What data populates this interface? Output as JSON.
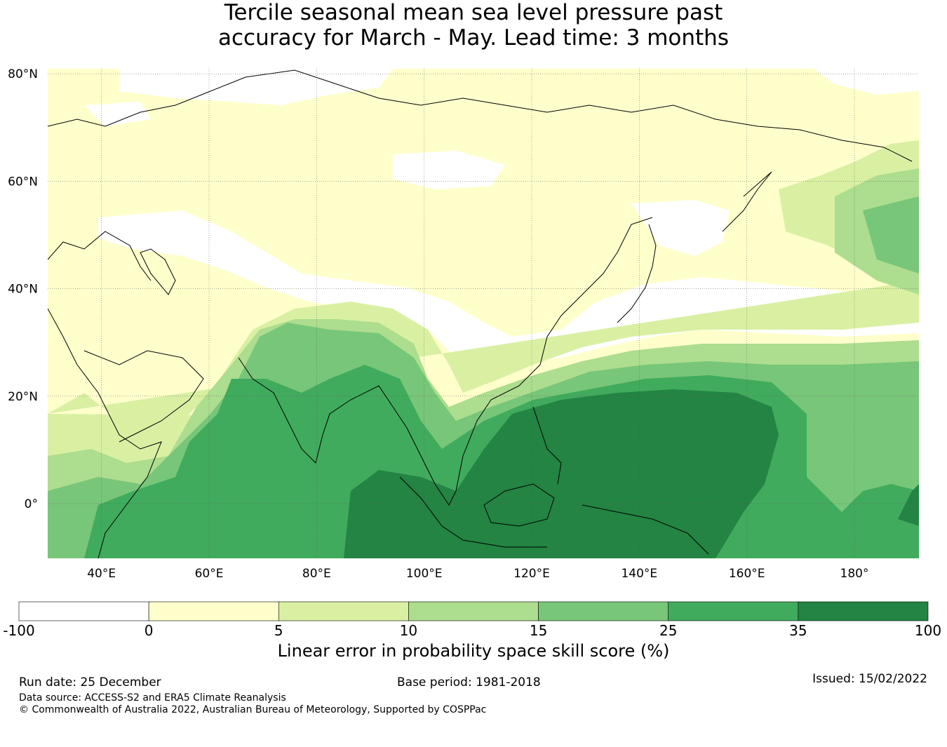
{
  "title": {
    "line1": "Tercile seasonal mean sea level pressure past",
    "line2": "accuracy for March - May. Lead time: 3 months"
  },
  "map": {
    "lat_ticks": [
      "80°N",
      "60°N",
      "40°N",
      "20°N",
      "0°"
    ],
    "lat_values": [
      80,
      60,
      40,
      20,
      0
    ],
    "lon_ticks": [
      "40°E",
      "60°E",
      "80°E",
      "100°E",
      "120°E",
      "140°E",
      "160°E",
      "180°"
    ],
    "lon_values": [
      40,
      60,
      80,
      100,
      120,
      140,
      160,
      180
    ],
    "lon_range": [
      30,
      192
    ],
    "lat_range": [
      -10,
      81
    ]
  },
  "colorbar": {
    "boundaries": [
      "-100",
      "0",
      "5",
      "10",
      "15",
      "25",
      "35",
      "100"
    ],
    "colors": [
      "#ffffff",
      "#ffffcc",
      "#d9f0a3",
      "#addd8e",
      "#78c679",
      "#41ab5d",
      "#238443"
    ],
    "label": "Linear error in probability space skill score (%)"
  },
  "footer": {
    "run_date": "Run date: 25 December",
    "base_period": "Base period: 1981-2018",
    "issued": "Issued: 15/02/2022",
    "data_source": "Data source: ACCESS-S2 and ERA5 Climate Reanalysis",
    "copyright": "© Commonwealth of Australia 2022, Australian Bureau of Meteorology, Supported by COSPPac"
  }
}
